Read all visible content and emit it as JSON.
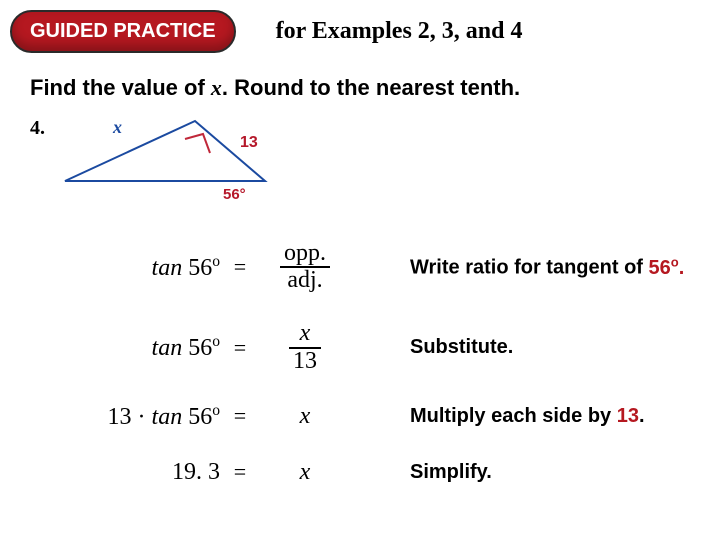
{
  "header": {
    "badge": "GUIDED PRACTICE",
    "title": "for Examples 2, 3, and 4"
  },
  "instruction": {
    "prefix": "Find the value of ",
    "var": "x",
    "suffix": ". Round to the nearest tenth."
  },
  "problem": {
    "number": "4."
  },
  "figure": {
    "x_label": "x",
    "side_label": "13",
    "angle_label": "56°",
    "x_color": "#1b4aa0",
    "side_color": "#b5182a",
    "line_color": "#1b4aa0",
    "right_angle_color": "#c0283a"
  },
  "steps": [
    {
      "lhs_tan": "tan",
      "lhs_angle": " 56",
      "lhs_sup": "o",
      "lhs_prefix": "",
      "eq": "=",
      "rhs_type": "frac",
      "rhs_num": "opp.",
      "rhs_den": "adj.",
      "explain_prefix": "Write ratio for tangent of ",
      "explain_red": "56",
      "explain_red_sup": "o",
      "explain_red_suffix": ".",
      "explain_suffix": ""
    },
    {
      "lhs_tan": "tan",
      "lhs_angle": " 56",
      "lhs_sup": "o",
      "lhs_prefix": "",
      "eq": "=",
      "rhs_type": "frac",
      "rhs_num": "x",
      "rhs_den": "13",
      "rhs_num_italic": true,
      "explain_prefix": "Substitute.",
      "explain_red": "",
      "explain_red_sup": "",
      "explain_red_suffix": "",
      "explain_suffix": ""
    },
    {
      "lhs_tan": "tan",
      "lhs_angle": " 56",
      "lhs_sup": "o",
      "lhs_prefix": "13 · ",
      "eq": "=",
      "rhs_type": "plain",
      "rhs_plain": "x",
      "rhs_plain_italic": true,
      "explain_prefix": "Multiply each side by ",
      "explain_red": "13",
      "explain_red_sup": "",
      "explain_red_suffix": "",
      "explain_suffix": "."
    },
    {
      "lhs_tan": "",
      "lhs_angle": "19. 3",
      "lhs_sup": "",
      "lhs_prefix": "",
      "eq": "=",
      "rhs_type": "plain",
      "rhs_plain": "x",
      "rhs_plain_italic": true,
      "explain_prefix": "Simplify.",
      "explain_red": "",
      "explain_red_sup": "",
      "explain_red_suffix": "",
      "explain_suffix": ""
    }
  ]
}
